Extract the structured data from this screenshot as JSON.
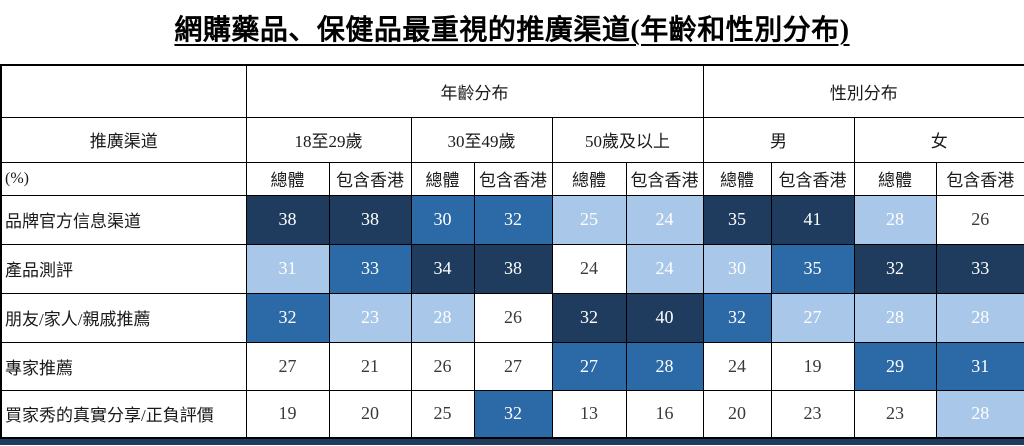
{
  "chart_data": {
    "type": "heatmap",
    "title": "網購藥品、保健品最重視的推廣渠道(年齡和性別分布)",
    "header": {
      "corner": "",
      "row1": [
        {
          "label": "年齡分布",
          "span": 6
        },
        {
          "label": "性別分布",
          "span": 4
        }
      ],
      "row2_first": "推廣渠道",
      "row2": [
        {
          "label": "18至29歲",
          "span": 2
        },
        {
          "label": "30至49歲",
          "span": 2
        },
        {
          "label": "50歲及以上",
          "span": 2
        },
        {
          "label": "男",
          "span": 2
        },
        {
          "label": "女",
          "span": 2
        }
      ],
      "row3_first": "(%)",
      "row3": [
        "總體",
        "包含香港",
        "總體",
        "包含香港",
        "總體",
        "包含香港",
        "總體",
        "包含香港",
        "總體",
        "包含香港"
      ]
    },
    "rows": [
      {
        "label": "品牌官方信息渠道",
        "values": [
          38,
          38,
          30,
          32,
          25,
          24,
          35,
          41,
          28,
          26
        ],
        "tones": [
          "dark",
          "dark",
          "medium",
          "medium",
          "light",
          "light",
          "dark",
          "dark",
          "light",
          "white"
        ]
      },
      {
        "label": "產品測評",
        "values": [
          31,
          33,
          34,
          38,
          24,
          24,
          30,
          35,
          32,
          33
        ],
        "tones": [
          "light",
          "medium",
          "dark",
          "dark",
          "white",
          "light",
          "light",
          "medium",
          "dark",
          "dark"
        ]
      },
      {
        "label": "朋友/家人/親戚推薦",
        "values": [
          32,
          23,
          28,
          26,
          32,
          40,
          32,
          27,
          28,
          28
        ],
        "tones": [
          "medium",
          "light",
          "light",
          "white",
          "dark",
          "dark",
          "medium",
          "light",
          "light",
          "light"
        ]
      },
      {
        "label": "專家推薦",
        "values": [
          27,
          21,
          26,
          27,
          27,
          28,
          24,
          19,
          29,
          31
        ],
        "tones": [
          "white",
          "white",
          "white",
          "white",
          "medium",
          "medium",
          "white",
          "white",
          "medium",
          "medium"
        ]
      },
      {
        "label": "買家秀的真實分享/正負評價",
        "values": [
          19,
          20,
          25,
          32,
          13,
          16,
          20,
          23,
          23,
          28
        ],
        "tones": [
          "white",
          "white",
          "white",
          "medium",
          "white",
          "white",
          "white",
          "white",
          "white",
          "light"
        ]
      }
    ],
    "unit": "(%)",
    "legend_position": "none",
    "colors": {
      "dark": "#1F3C5F",
      "medium": "#2C69A7",
      "light": "#A9C7E8",
      "white": "#FFFFFF",
      "text_on_color": "#FFFFFF",
      "text_on_white": "#3A3A3A",
      "border": "#000000"
    }
  }
}
